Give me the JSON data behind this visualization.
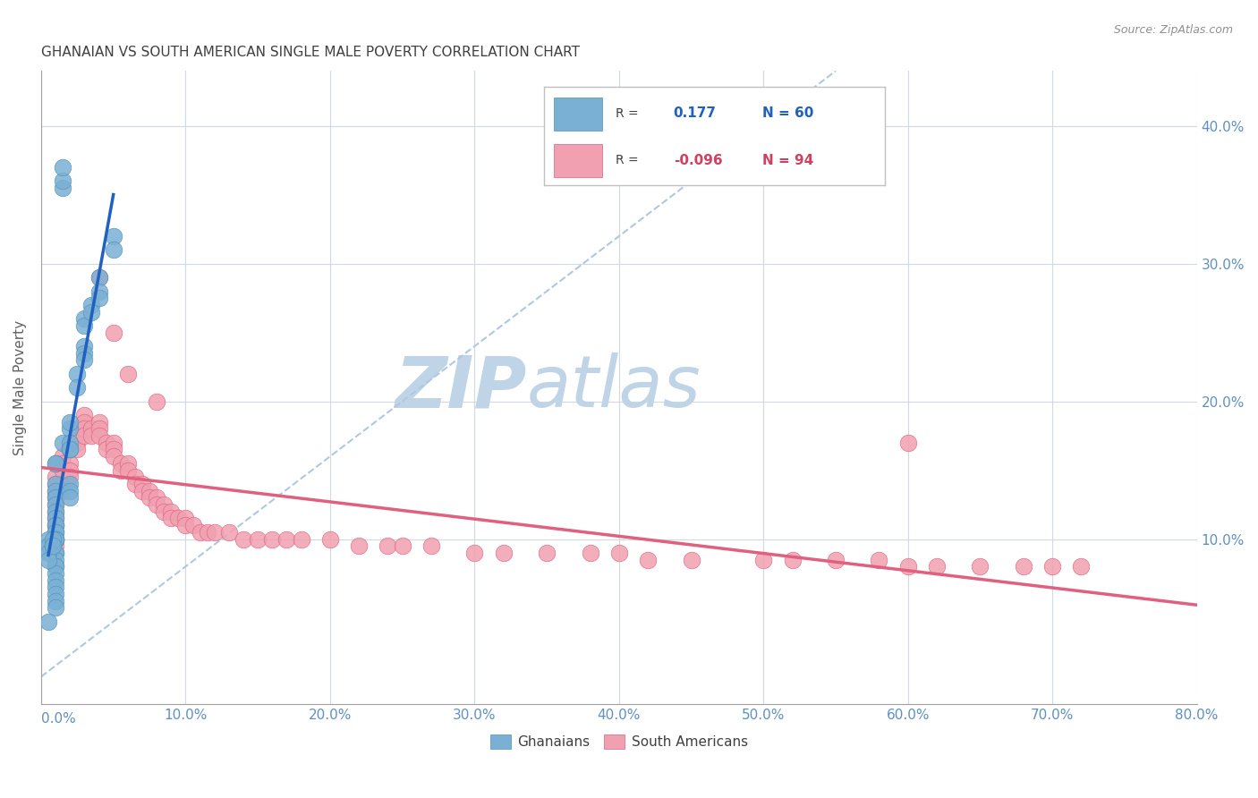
{
  "title": "GHANAIAN VS SOUTH AMERICAN SINGLE MALE POVERTY CORRELATION CHART",
  "source": "Source: ZipAtlas.com",
  "ylabel": "Single Male Poverty",
  "ytick_values": [
    0.1,
    0.2,
    0.3,
    0.4
  ],
  "xlim": [
    0.0,
    0.8
  ],
  "ylim": [
    -0.02,
    0.44
  ],
  "legend_entries": [
    {
      "label": "Ghanaians",
      "R": "0.177",
      "N": "60"
    },
    {
      "label": "South Americans",
      "R": "-0.096",
      "N": "94"
    }
  ],
  "watermark_zip": "ZIP",
  "watermark_atlas": "atlas",
  "watermark_color_zip": "#c0d4e8",
  "watermark_color_atlas": "#c0d4e8",
  "background_color": "#ffffff",
  "ghanaian_color": "#7ab0d4",
  "ghanaian_edge": "#5090b8",
  "south_american_color": "#f0a0b0",
  "south_american_edge": "#e06080",
  "ghanaian_trend_color": "#2060c0",
  "south_american_trend_color": "#e06080",
  "diagonal_color": "#b0c8e0",
  "grid_color": "#d0d8e0",
  "title_color": "#404040",
  "axis_label_color": "#6090c0",
  "ghanaians_x": [
    0.01,
    0.01,
    0.01,
    0.01,
    0.01,
    0.01,
    0.01,
    0.01,
    0.01,
    0.01,
    0.01,
    0.01,
    0.01,
    0.01,
    0.01,
    0.01,
    0.01,
    0.01,
    0.01,
    0.01,
    0.01,
    0.01,
    0.01,
    0.01,
    0.01,
    0.01,
    0.01,
    0.015,
    0.02,
    0.02,
    0.02,
    0.02,
    0.02,
    0.02,
    0.02,
    0.02,
    0.025,
    0.025,
    0.03,
    0.03,
    0.03,
    0.03,
    0.03,
    0.035,
    0.035,
    0.04,
    0.04,
    0.04,
    0.05,
    0.05,
    0.005,
    0.005,
    0.005,
    0.005,
    0.005,
    0.008,
    0.008,
    0.015,
    0.015,
    0.015
  ],
  "ghanaians_y": [
    0.155,
    0.155,
    0.14,
    0.135,
    0.13,
    0.125,
    0.12,
    0.115,
    0.11,
    0.11,
    0.105,
    0.105,
    0.1,
    0.1,
    0.1,
    0.1,
    0.09,
    0.09,
    0.085,
    0.08,
    0.08,
    0.075,
    0.07,
    0.065,
    0.06,
    0.055,
    0.05,
    0.17,
    0.165,
    0.18,
    0.185,
    0.17,
    0.165,
    0.14,
    0.135,
    0.13,
    0.22,
    0.21,
    0.24,
    0.235,
    0.23,
    0.26,
    0.255,
    0.27,
    0.265,
    0.29,
    0.28,
    0.275,
    0.32,
    0.31,
    0.1,
    0.095,
    0.09,
    0.085,
    0.04,
    0.1,
    0.095,
    0.355,
    0.36,
    0.37
  ],
  "south_americans_x": [
    0.01,
    0.01,
    0.01,
    0.01,
    0.01,
    0.01,
    0.01,
    0.01,
    0.01,
    0.01,
    0.015,
    0.015,
    0.015,
    0.015,
    0.015,
    0.02,
    0.02,
    0.02,
    0.02,
    0.02,
    0.025,
    0.025,
    0.025,
    0.025,
    0.03,
    0.03,
    0.03,
    0.03,
    0.035,
    0.035,
    0.04,
    0.04,
    0.04,
    0.045,
    0.045,
    0.05,
    0.05,
    0.05,
    0.055,
    0.055,
    0.06,
    0.06,
    0.065,
    0.065,
    0.07,
    0.07,
    0.075,
    0.075,
    0.08,
    0.08,
    0.085,
    0.085,
    0.09,
    0.09,
    0.095,
    0.1,
    0.1,
    0.105,
    0.11,
    0.115,
    0.12,
    0.13,
    0.14,
    0.15,
    0.16,
    0.17,
    0.18,
    0.2,
    0.22,
    0.24,
    0.25,
    0.27,
    0.3,
    0.32,
    0.35,
    0.38,
    0.4,
    0.42,
    0.45,
    0.5,
    0.52,
    0.55,
    0.58,
    0.6,
    0.62,
    0.65,
    0.68,
    0.7,
    0.72,
    0.6,
    0.04,
    0.05,
    0.06,
    0.08
  ],
  "south_americans_y": [
    0.145,
    0.14,
    0.135,
    0.13,
    0.125,
    0.12,
    0.115,
    0.11,
    0.1,
    0.095,
    0.16,
    0.155,
    0.15,
    0.14,
    0.135,
    0.17,
    0.165,
    0.155,
    0.15,
    0.145,
    0.18,
    0.175,
    0.17,
    0.165,
    0.19,
    0.185,
    0.18,
    0.175,
    0.18,
    0.175,
    0.185,
    0.18,
    0.175,
    0.17,
    0.165,
    0.17,
    0.165,
    0.16,
    0.155,
    0.15,
    0.155,
    0.15,
    0.145,
    0.14,
    0.14,
    0.135,
    0.135,
    0.13,
    0.13,
    0.125,
    0.125,
    0.12,
    0.12,
    0.115,
    0.115,
    0.115,
    0.11,
    0.11,
    0.105,
    0.105,
    0.105,
    0.105,
    0.1,
    0.1,
    0.1,
    0.1,
    0.1,
    0.1,
    0.095,
    0.095,
    0.095,
    0.095,
    0.09,
    0.09,
    0.09,
    0.09,
    0.09,
    0.085,
    0.085,
    0.085,
    0.085,
    0.085,
    0.085,
    0.08,
    0.08,
    0.08,
    0.08,
    0.08,
    0.08,
    0.17,
    0.29,
    0.25,
    0.22,
    0.2
  ]
}
